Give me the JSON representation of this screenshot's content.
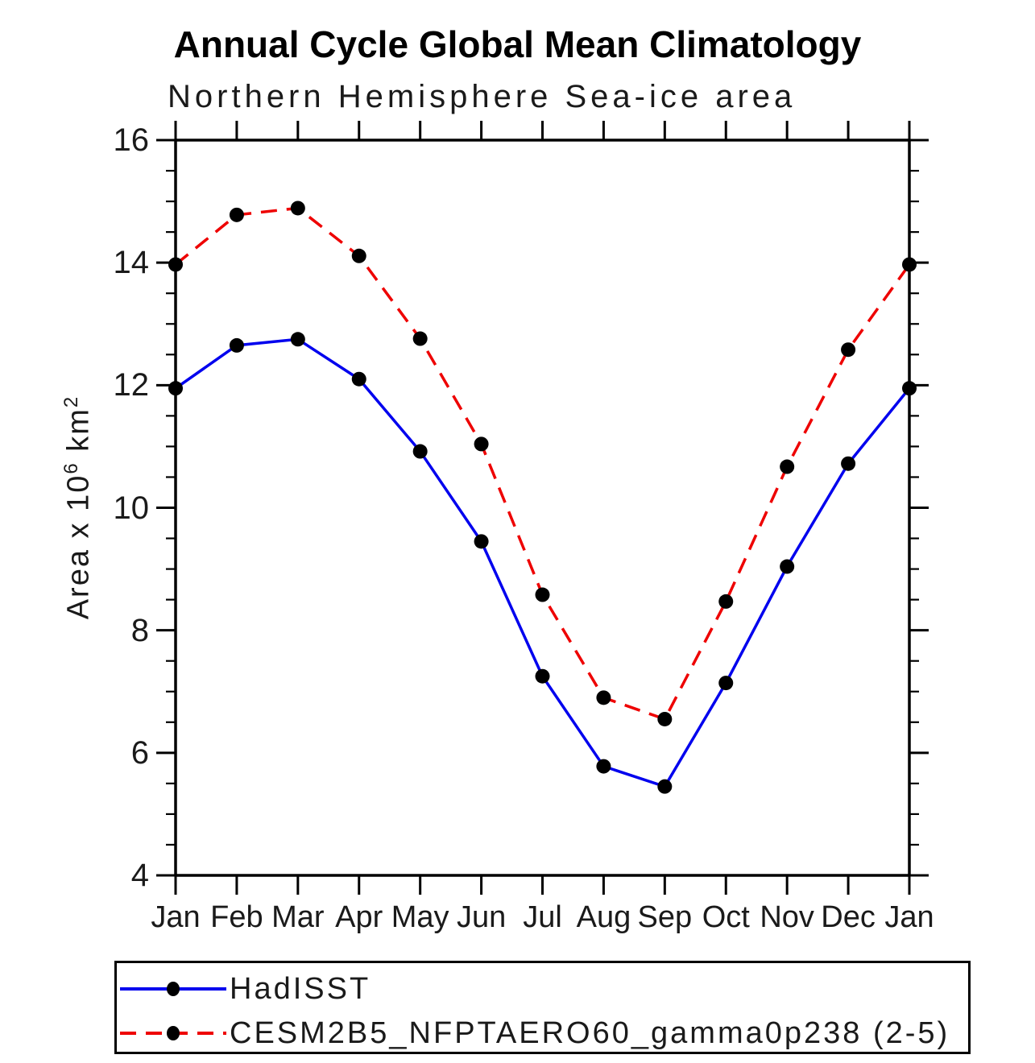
{
  "chart_data": {
    "type": "line",
    "title": "Annual Cycle Global Mean Climatology",
    "subtitle": "Northern Hemisphere Sea-ice area",
    "ylabel": "Area x 10⁶ km²",
    "ylabel_parts": {
      "base1": "Area x 10",
      "sup1": "6",
      "base2": " km",
      "sup2": "2"
    },
    "xlabel": "",
    "x": [
      "Jan",
      "Feb",
      "Mar",
      "Apr",
      "May",
      "Jun",
      "Jul",
      "Aug",
      "Sep",
      "Oct",
      "Nov",
      "Dec",
      "Jan"
    ],
    "series": [
      {
        "name": "HadISST",
        "color": "#0000ee",
        "line_style": "solid",
        "marker": "filled-circle",
        "marker_color": "#000000",
        "values": [
          11.95,
          12.65,
          12.75,
          12.1,
          10.92,
          9.45,
          7.25,
          5.78,
          5.45,
          7.14,
          9.04,
          10.72,
          11.95
        ]
      },
      {
        "name": "CESM2B5_NFPTAERO60_gamma0p238 (2-5)",
        "color": "#ee0000",
        "line_style": "dashed",
        "marker": "filled-circle",
        "marker_color": "#000000",
        "values": [
          13.97,
          14.78,
          14.89,
          14.11,
          12.76,
          11.04,
          8.58,
          6.9,
          6.55,
          8.47,
          10.67,
          12.58,
          13.97
        ]
      }
    ],
    "ylim": [
      4,
      16
    ],
    "ytick_major_step": 2,
    "ytick_minor_step": 0.5,
    "ytick_labels": [
      "4",
      "6",
      "8",
      "10",
      "12",
      "14",
      "16"
    ],
    "grid": false,
    "frame": "box-with-outward-ticks",
    "axis_color": "#000000",
    "legend_position": "bottom-left-box"
  }
}
